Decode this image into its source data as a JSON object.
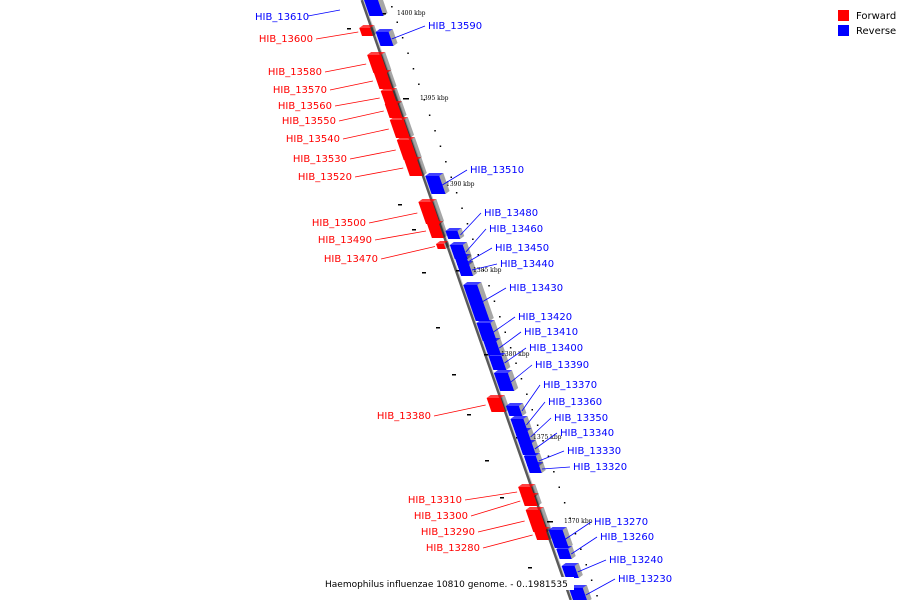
{
  "legend": {
    "forward_label": "Forward",
    "reverse_label": "Reverse",
    "forward_color": "#ff0000",
    "reverse_color": "#0000ff"
  },
  "caption": "Haemophilus influenzae 10810 genome. - 0..1981535",
  "axis_ticks": [
    "1400 kbp",
    "1395 kbp",
    "1390 kbp",
    "1385 kbp",
    "1380 kbp",
    "1375 kbp",
    "1370 kbp"
  ],
  "forward_genes": [
    "HIB_13600",
    "HIB_13580",
    "HIB_13570",
    "HIB_13560",
    "HIB_13550",
    "HIB_13540",
    "HIB_13530",
    "HIB_13520",
    "HIB_13500",
    "HIB_13490",
    "HIB_13470",
    "HIB_13380",
    "HIB_13310",
    "HIB_13300",
    "HIB_13290",
    "HIB_13280"
  ],
  "reverse_genes": [
    "HIB_13610",
    "HIB_13590",
    "HIB_13510",
    "HIB_13480",
    "HIB_13460",
    "HIB_13450",
    "HIB_13440",
    "HIB_13430",
    "HIB_13420",
    "HIB_13410",
    "HIB_13400",
    "HIB_13390",
    "HIB_13370",
    "HIB_13360",
    "HIB_13350",
    "HIB_13340",
    "HIB_13330",
    "HIB_13320",
    "HIB_13270",
    "HIB_13260",
    "HIB_13240",
    "HIB_13230"
  ]
}
